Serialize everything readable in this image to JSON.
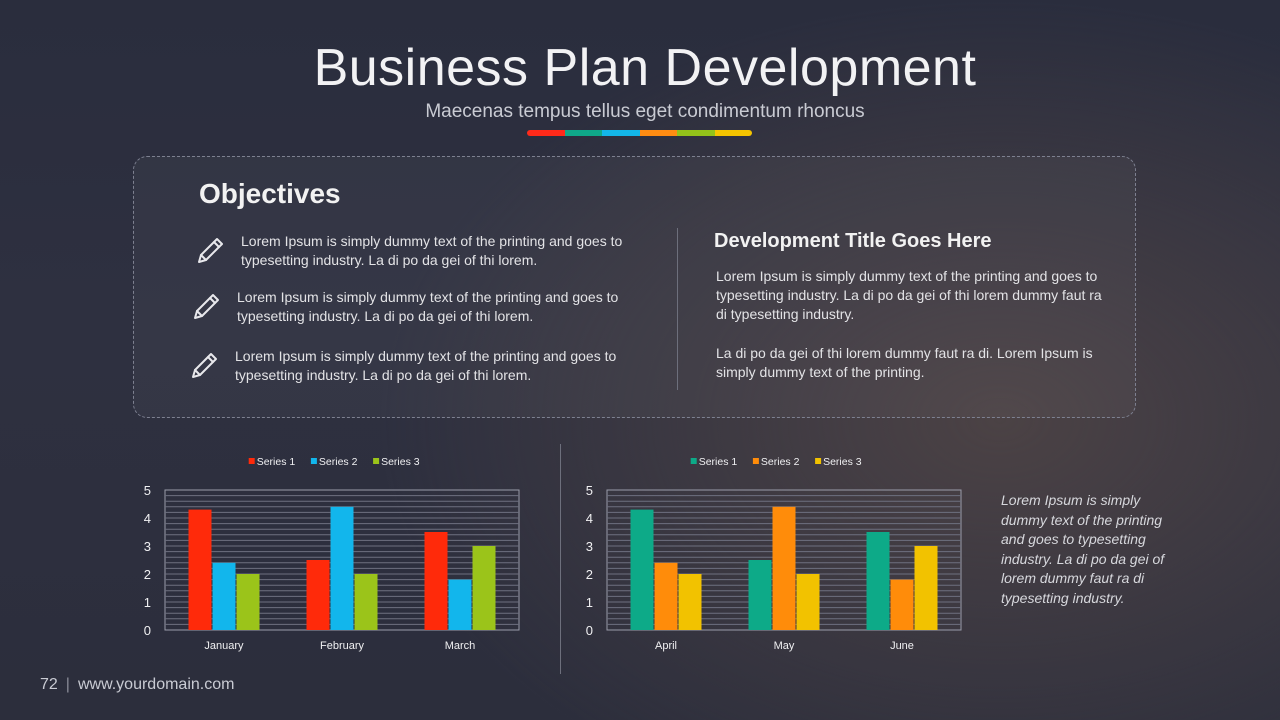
{
  "slide": {
    "title": "Business Plan Development",
    "subtitle": "Maecenas tempus tellus eget condimentum rhoncus",
    "accent_colors": [
      "#ff2a1a",
      "#0fa889",
      "#13b6e8",
      "#ff8c12",
      "#93c21a",
      "#f5c400"
    ]
  },
  "objectives": {
    "heading": "Objectives",
    "icon": "pencil-icon",
    "items": [
      "Lorem Ipsum is simply dummy  text of the printing and goes to typesetting industry. La di po da gei of thi lorem.",
      "Lorem Ipsum is simply dummy  text of the printing and goes to typesetting industry. La di po da gei of thi lorem.",
      "Lorem Ipsum is simply dummy  text of the printing and goes to typesetting industry. La di po da gei of thi lorem."
    ]
  },
  "development": {
    "title": "Development Title Goes Here",
    "paragraph1": "Lorem Ipsum is simply dummy  text of the printing and goes to  typesetting industry. La di po da gei of thi lorem dummy  faut ra di typesetting industry.",
    "paragraph2": "La di po da gei of thi lorem dummy  faut ra di. Lorem Ipsum is simply dummy  text of the printing."
  },
  "side_note": "Lorem Ipsum is simply dummy text of the printing and goes to  typesetting industry.  La di po da gei of lorem dummy faut ra di typesetting industry.",
  "footer": {
    "page_number": "72",
    "separator": "|",
    "url": "www.yourdomain.com"
  },
  "chart_data": [
    {
      "type": "bar",
      "categories": [
        "January",
        "February",
        "March"
      ],
      "series": [
        {
          "name": "Series 1",
          "values": [
            4.3,
            2.5,
            3.5
          ],
          "color": "#ff2a0a"
        },
        {
          "name": "Series 2",
          "values": [
            2.4,
            4.4,
            1.8
          ],
          "color": "#12b6ec"
        },
        {
          "name": "Series 3",
          "values": [
            2.0,
            2.0,
            3.0
          ],
          "color": "#9bc41a"
        }
      ],
      "ylim": [
        0,
        5
      ],
      "yticks": [
        "0",
        "1",
        "2",
        "3",
        "4",
        "5"
      ],
      "legend": "top",
      "grid": true
    },
    {
      "type": "bar",
      "categories": [
        "April",
        "May",
        "June"
      ],
      "series": [
        {
          "name": "Series 1",
          "values": [
            4.3,
            2.5,
            3.5
          ],
          "color": "#0daa88"
        },
        {
          "name": "Series 2",
          "values": [
            2.4,
            4.4,
            1.8
          ],
          "color": "#ff8c0a"
        },
        {
          "name": "Series 3",
          "values": [
            2.0,
            2.0,
            3.0
          ],
          "color": "#f2c200"
        }
      ],
      "ylim": [
        0,
        5
      ],
      "yticks": [
        "0",
        "1",
        "2",
        "3",
        "4",
        "5"
      ],
      "legend": "top",
      "grid": true
    }
  ]
}
